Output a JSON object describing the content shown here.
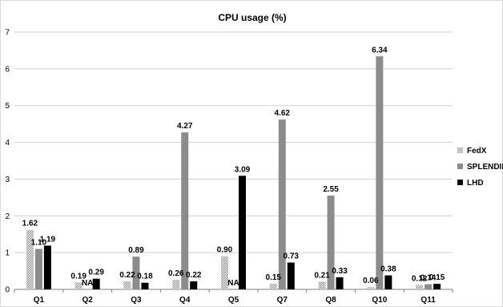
{
  "chart_data": {
    "type": "bar",
    "title": "CPU usage (%)",
    "xlabel": "",
    "ylabel": "",
    "ylim": [
      0,
      7
    ],
    "yticks": [
      0,
      1,
      2,
      3,
      4,
      5,
      6,
      7
    ],
    "grid": true,
    "legend_position": "right",
    "categories": [
      "Q1",
      "Q2",
      "Q3",
      "Q4",
      "Q5",
      "Q7",
      "Q8",
      "Q10",
      "Q11"
    ],
    "series": [
      {
        "name": "FedX",
        "color": "#bfbfbf",
        "pattern": "hatch",
        "values": [
          1.62,
          0.19,
          0.22,
          0.26,
          0.9,
          0.15,
          0.21,
          0.06,
          0.12
        ],
        "labels": [
          "1.62",
          "0.19",
          "0.22",
          "0.26",
          "0.90",
          "0.15",
          "0.21",
          "0.06",
          "0.12"
        ]
      },
      {
        "name": "SPLENDID",
        "color": "#8c8c8c",
        "values": [
          1.1,
          null,
          0.89,
          4.27,
          null,
          4.62,
          2.55,
          6.34,
          0.14
        ],
        "labels": [
          "1.10",
          "NA",
          "0.89",
          "4.27",
          "NA",
          "4.62",
          "2.55",
          "6.34",
          "0.14"
        ]
      },
      {
        "name": "LHD",
        "color": "#000000",
        "values": [
          1.19,
          0.29,
          0.18,
          0.22,
          3.09,
          0.73,
          0.33,
          0.38,
          0.15
        ],
        "labels": [
          "1.19",
          "0.29",
          "0.18",
          "0.22",
          "3.09",
          "0.73",
          "0.33",
          "0.38",
          "0.15"
        ]
      }
    ]
  }
}
